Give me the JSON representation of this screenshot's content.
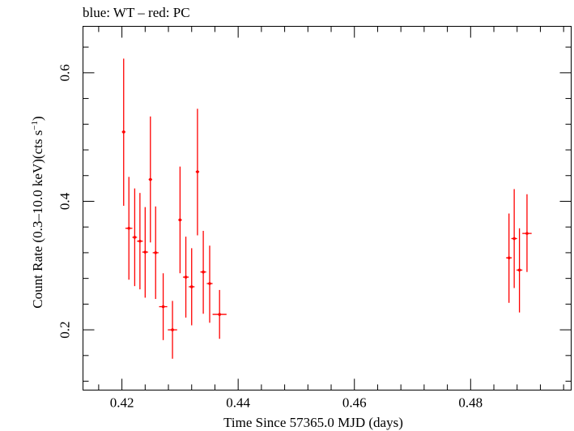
{
  "chart_data": {
    "type": "scatter",
    "title": "blue: WT – red: PC",
    "xlabel": "Time Since 57365.0 MJD (days)",
    "ylabel_main": "Count Rate (0.3–10.0 keV)(cts s",
    "ylabel_sup": "−1",
    "ylabel_close": ")",
    "xlim": [
      0.4133,
      0.4973
    ],
    "ylim": [
      0.1062,
      0.6723
    ],
    "xticks": [
      0.42,
      0.44,
      0.46,
      0.48
    ],
    "xtick_labels": [
      "0.42",
      "0.44",
      "0.46",
      "0.48"
    ],
    "yticks": [
      0.2,
      0.4,
      0.6
    ],
    "ytick_labels": [
      "0.2",
      "0.4",
      "0.6"
    ],
    "grid": false,
    "series": [
      {
        "color": "#ff0000",
        "points": [
          {
            "x": 0.4203,
            "xerr": 0.0003,
            "y": 0.508,
            "ylo": 0.393,
            "yhi": 0.622
          },
          {
            "x": 0.4212,
            "xerr": 0.0006,
            "y": 0.358,
            "ylo": 0.278,
            "yhi": 0.438
          },
          {
            "x": 0.4222,
            "xerr": 0.0004,
            "y": 0.344,
            "ylo": 0.268,
            "yhi": 0.42
          },
          {
            "x": 0.4231,
            "xerr": 0.0005,
            "y": 0.338,
            "ylo": 0.263,
            "yhi": 0.413
          },
          {
            "x": 0.424,
            "xerr": 0.0005,
            "y": 0.321,
            "ylo": 0.25,
            "yhi": 0.391
          },
          {
            "x": 0.4249,
            "xerr": 0.0003,
            "y": 0.434,
            "ylo": 0.336,
            "yhi": 0.532
          },
          {
            "x": 0.4258,
            "xerr": 0.0005,
            "y": 0.32,
            "ylo": 0.248,
            "yhi": 0.392
          },
          {
            "x": 0.4271,
            "xerr": 0.0007,
            "y": 0.236,
            "ylo": 0.184,
            "yhi": 0.288
          },
          {
            "x": 0.4287,
            "xerr": 0.0008,
            "y": 0.2,
            "ylo": 0.155,
            "yhi": 0.245
          },
          {
            "x": 0.43,
            "xerr": 0.0003,
            "y": 0.371,
            "ylo": 0.288,
            "yhi": 0.454
          },
          {
            "x": 0.431,
            "xerr": 0.0005,
            "y": 0.282,
            "ylo": 0.219,
            "yhi": 0.345
          },
          {
            "x": 0.432,
            "xerr": 0.0005,
            "y": 0.267,
            "ylo": 0.207,
            "yhi": 0.327
          },
          {
            "x": 0.433,
            "xerr": 0.0003,
            "y": 0.446,
            "ylo": 0.347,
            "yhi": 0.544
          },
          {
            "x": 0.434,
            "xerr": 0.0005,
            "y": 0.29,
            "ylo": 0.225,
            "yhi": 0.354
          },
          {
            "x": 0.4351,
            "xerr": 0.0005,
            "y": 0.272,
            "ylo": 0.211,
            "yhi": 0.331
          },
          {
            "x": 0.4368,
            "xerr": 0.0012,
            "y": 0.224,
            "ylo": 0.186,
            "yhi": 0.262
          },
          {
            "x": 0.4866,
            "xerr": 0.0005,
            "y": 0.312,
            "ylo": 0.242,
            "yhi": 0.381
          },
          {
            "x": 0.4875,
            "xerr": 0.0005,
            "y": 0.342,
            "ylo": 0.265,
            "yhi": 0.419
          },
          {
            "x": 0.4884,
            "xerr": 0.0005,
            "y": 0.293,
            "ylo": 0.227,
            "yhi": 0.358
          },
          {
            "x": 0.4897,
            "xerr": 0.0008,
            "y": 0.35,
            "ylo": 0.29,
            "yhi": 0.411
          }
        ]
      }
    ]
  }
}
